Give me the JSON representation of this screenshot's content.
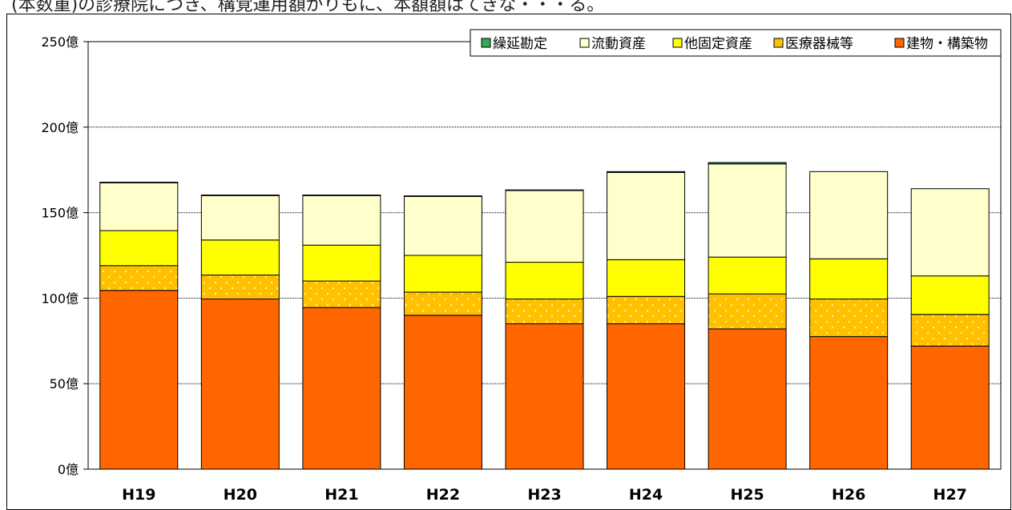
{
  "page": {
    "top_text": "(本数重)の診療院につき、構覚運用額がりもに、本額額はてきな・・・る。"
  },
  "chart_data": {
    "type": "bar",
    "stacked": true,
    "categories": [
      "H19",
      "H20",
      "H21",
      "H22",
      "H23",
      "H24",
      "H25",
      "H26",
      "H27"
    ],
    "series": [
      {
        "name": "建物・構築物",
        "color": "#FF6600",
        "pattern": "solid",
        "values": [
          104.5,
          99.5,
          94.5,
          90,
          85,
          85,
          82,
          77.5,
          72
        ]
      },
      {
        "name": "医療器械等",
        "color": "#FFC000",
        "pattern": "dots",
        "values": [
          14.5,
          14,
          15.5,
          13.5,
          14.5,
          16,
          20.5,
          22,
          18.5
        ]
      },
      {
        "name": "他固定資産",
        "color": "#FFFF00",
        "pattern": "solid",
        "values": [
          20.5,
          20.5,
          21,
          21.5,
          21.5,
          21.5,
          21.5,
          23.5,
          22.5
        ]
      },
      {
        "name": "流動資産",
        "color": "#FFFFCC",
        "pattern": "solid",
        "values": [
          28,
          26,
          29,
          34.5,
          42,
          51,
          54.5,
          51,
          51
        ]
      },
      {
        "name": "繰延勘定",
        "color": "#33AA55",
        "pattern": "solid",
        "values": [
          0.3,
          0.3,
          0.3,
          0.3,
          0.3,
          0.5,
          0.8,
          0,
          0
        ]
      }
    ],
    "yaxis": {
      "min": 0,
      "max": 250,
      "step": 50,
      "tick_labels": [
        "0億",
        "50億",
        "100億",
        "150億",
        "200億",
        "250億"
      ]
    },
    "legend": {
      "placement": "top-right",
      "order": [
        "繰延勘定",
        "流動資産",
        "他固定資産",
        "医療器械等",
        "建物・構築物"
      ]
    },
    "grid": true,
    "xlabel": "",
    "ylabel": "",
    "title": ""
  }
}
